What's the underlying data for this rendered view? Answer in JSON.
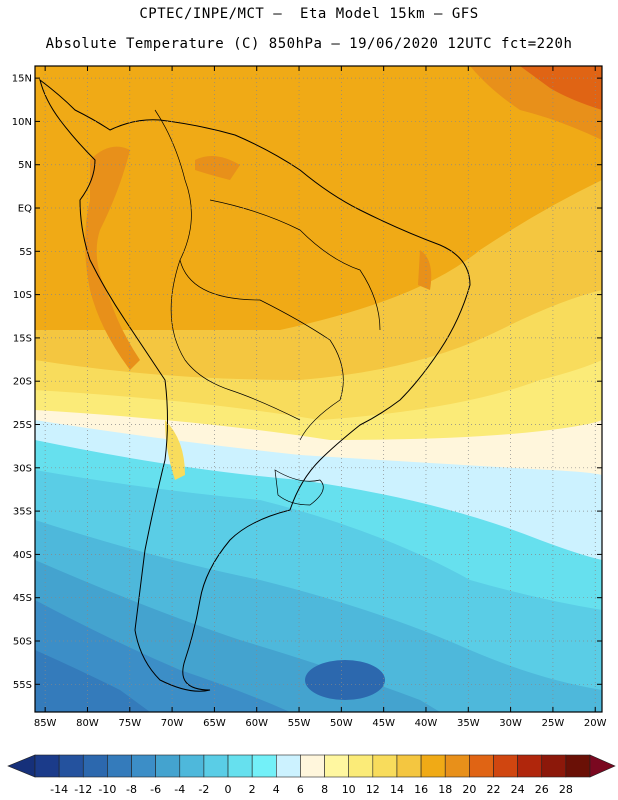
{
  "header": {
    "line1": "CPTEC/INPE/MCT –  Eta Model 15km – GFS",
    "line2": "Absolute Temperature (C) 850hPa – 19/06/2020 12UTC fct=220h"
  },
  "map": {
    "lat_labels": [
      "15N",
      "10N",
      "5N",
      "EQ",
      "5S",
      "10S",
      "15S",
      "20S",
      "25S",
      "30S",
      "35S",
      "40S",
      "45S",
      "50S",
      "55S"
    ],
    "lon_labels": [
      "85W",
      "80W",
      "75W",
      "70W",
      "65W",
      "60W",
      "55W",
      "50W",
      "45W",
      "40W",
      "35W",
      "30W",
      "25W",
      "20W"
    ],
    "lat_values": [
      15,
      10,
      5,
      0,
      -5,
      -10,
      -15,
      -20,
      -25,
      -30,
      -35,
      -40,
      -45,
      -50,
      -55
    ],
    "lon_values": [
      -85,
      -80,
      -75,
      -70,
      -65,
      -60,
      -55,
      -50,
      -45,
      -40,
      -35,
      -30,
      -25,
      -20
    ],
    "grid": true
  },
  "colorbar": {
    "labels": [
      "-14",
      "-12",
      "-10",
      "-8",
      "-6",
      "-4",
      "-2",
      "0",
      "2",
      "4",
      "6",
      "8",
      "10",
      "12",
      "14",
      "16",
      "18",
      "20",
      "22",
      "24",
      "26",
      "28"
    ],
    "colors": [
      "#1b3b8a",
      "#24529e",
      "#2c68ae",
      "#347bbb",
      "#3c8ec7",
      "#44a3cf",
      "#4eb8db",
      "#5acde6",
      "#66e0ee",
      "#73f0f8",
      "#ccf2ff",
      "#fff6dc",
      "#fff7a0",
      "#fbeb78",
      "#f8dc5c",
      "#f4c640",
      "#f0aa16",
      "#e8901a",
      "#e06414",
      "#d04610",
      "#b0260c",
      "#8c180a",
      "#6a1006"
    ],
    "under_color": "#16307a",
    "over_color": "#7a0820"
  }
}
